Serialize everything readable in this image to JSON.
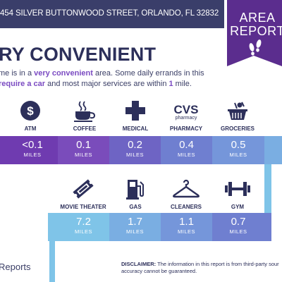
{
  "header": {
    "address": "454 SILVER BUTTONWOOD STREET, ORLANDO, FL 32832"
  },
  "badge": {
    "line1": "AREA",
    "line2": "REPORT",
    "icon": "footprints-icon",
    "color": "#5b2d8e"
  },
  "headline": "RY CONVENIENT",
  "description": {
    "part1": "me is in a ",
    "highlight1": "very convenient",
    "part2": " area. Some daily errands in this",
    "highlight2": "require a car",
    "part3": " and most major services are within ",
    "highlight3": "1",
    "part4": " mile."
  },
  "row1": [
    {
      "label": "ATM",
      "icon": "dollar-icon",
      "value": "<0.1",
      "unit": "MILES"
    },
    {
      "label": "COFFEE",
      "icon": "coffee-cup-icon",
      "value": "0.1",
      "unit": "MILES"
    },
    {
      "label": "MEDICAL",
      "icon": "medical-cross-icon",
      "value": "0.2",
      "unit": "MILES"
    },
    {
      "label": "PHARMACY",
      "icon": "cvs-pharmacy-icon",
      "icon_text": "CVS",
      "icon_subtext": "pharmacy",
      "value": "0.4",
      "unit": "MILES"
    },
    {
      "label": "GROCERIES",
      "icon": "grocery-basket-icon",
      "value": "0.5",
      "unit": "MILES"
    }
  ],
  "row2": [
    {
      "label": "MOVIE THEATER",
      "icon": "movie-ticket-icon",
      "value": "7.2",
      "unit": "MILES"
    },
    {
      "label": "GAS",
      "icon": "gas-pump-icon",
      "value": "1.7",
      "unit": "MILES"
    },
    {
      "label": "CLEANERS",
      "icon": "hanger-icon",
      "value": "1.1",
      "unit": "MILES"
    },
    {
      "label": "GYM",
      "icon": "dumbbell-icon",
      "value": "0.7",
      "unit": "MILES"
    }
  ],
  "footer": {
    "brand": "Reports",
    "disclaimer_label": "DISCLAIMER:",
    "disclaimer_text": " The information in this report is from third-party sour accuracy cannot be guaranteed."
  },
  "colors": {
    "navy": "#3a3e6a",
    "dark_text": "#2c2f5a",
    "purple": "#5b2d8e",
    "accent_purple": "#7b4bc2",
    "light_blue": "#7fc4e8"
  }
}
